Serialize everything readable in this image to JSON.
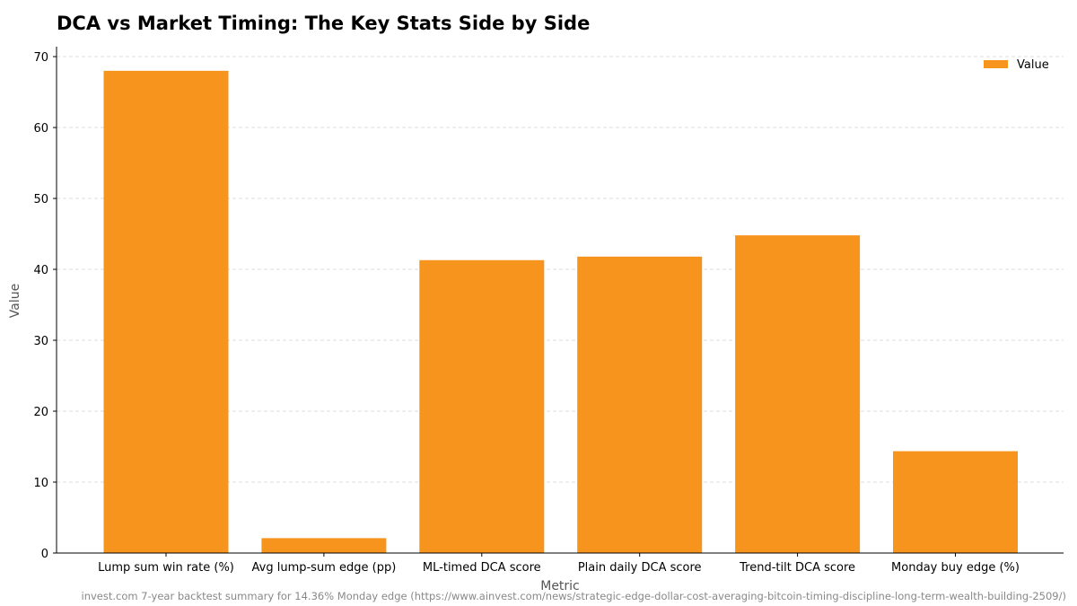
{
  "chart_data": {
    "type": "bar",
    "title": "DCA vs Market Timing: The Key Stats Side by Side",
    "xlabel": "Metric",
    "ylabel": "Value",
    "categories": [
      "Lump sum win rate (%)",
      "Avg lump-sum edge (pp)",
      "ML-timed DCA score",
      "Plain daily DCA score",
      "Trend-tilt DCA score",
      "Monday buy edge (%)"
    ],
    "series": [
      {
        "name": "Value",
        "values": [
          68.0,
          2.1,
          41.3,
          41.8,
          44.8,
          14.36
        ],
        "color": "#F7941D"
      }
    ],
    "ylim": [
      0,
      71.4
    ],
    "yticks": [
      0,
      10,
      20,
      30,
      40,
      50,
      60,
      70
    ],
    "grid": "y dashed",
    "legend_position": "top-right",
    "source": "invest.com 7-year backtest summary for 14.36% Monday edge (https://www.ainvest.com/news/strategic-edge-dollar-cost-averaging-bitcoin-timing-discipline-long-term-wealth-building-2509/)"
  }
}
